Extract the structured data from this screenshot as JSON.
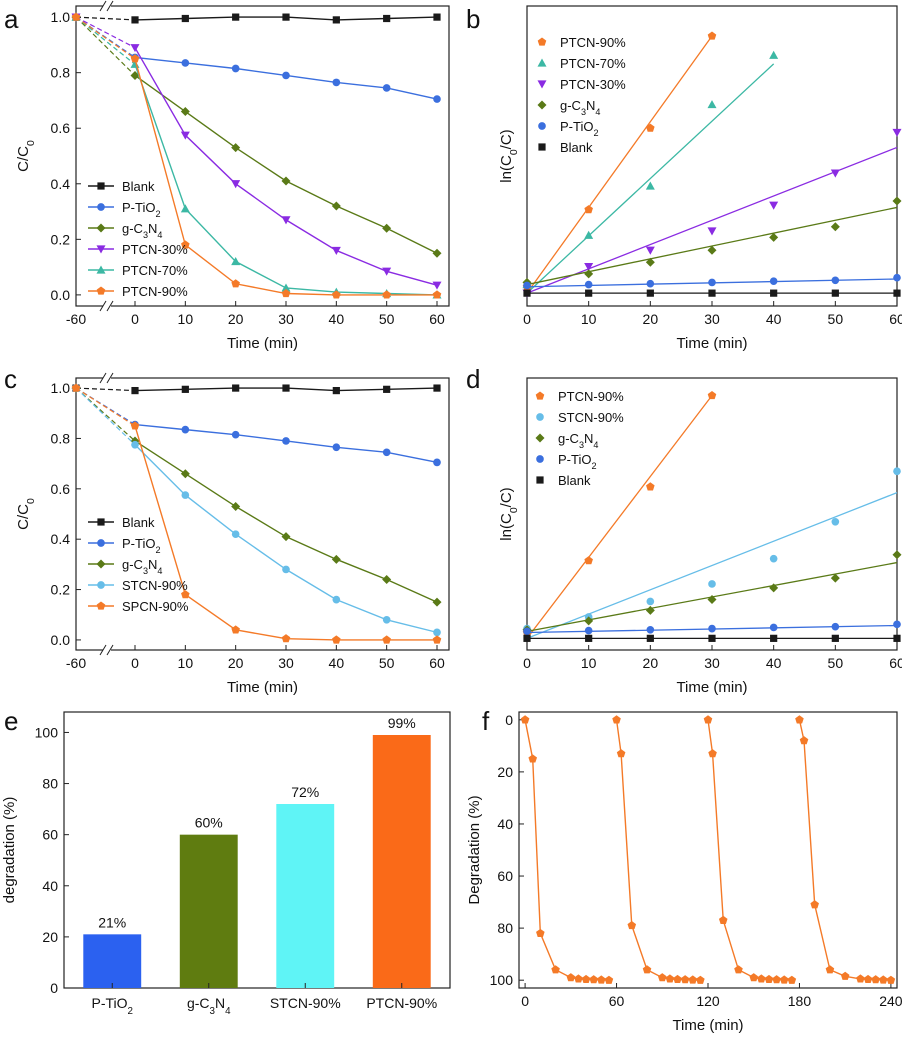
{
  "colors": {
    "blank": "#1a1a1a",
    "ptio2": "#3b6fde",
    "gcn": "#5a7a17",
    "ptcn30": "#8a2be2",
    "ptcn70": "#3cb8a4",
    "ptcn90": "#f47a28",
    "stcn90": "#66bde8",
    "spcn90": "#f47a28",
    "bar_ptio2": "#2b61f0",
    "bar_gcn": "#5f7c10",
    "bar_stcn": "#5ff4f6",
    "bar_ptcn": "#fa6a18"
  },
  "chart_data": [
    {
      "panel": "a",
      "type": "line",
      "xlabel": "Time (min)",
      "ylabel": "C/C0",
      "xticks": [
        "-60",
        "0",
        "10",
        "20",
        "30",
        "40",
        "50",
        "60"
      ],
      "yticks": [
        "0.0",
        "0.2",
        "0.4",
        "0.6",
        "0.8",
        "1.0"
      ],
      "ylim": [
        -0.04,
        1.04
      ],
      "x_break": true,
      "legend_position": "bottom-left",
      "x": [
        -60,
        0,
        10,
        20,
        30,
        40,
        50,
        60
      ],
      "series": [
        {
          "name": "Blank",
          "sub": "",
          "key": "blank",
          "marker": "square",
          "values": [
            1.0,
            0.99,
            0.995,
            1.0,
            1.0,
            0.99,
            0.995,
            1.0
          ]
        },
        {
          "name": "P-TiO",
          "sub": "2",
          "key": "ptio2",
          "marker": "circle",
          "values": [
            1.0,
            0.855,
            0.835,
            0.815,
            0.79,
            0.765,
            0.745,
            0.705
          ]
        },
        {
          "name": "g-C",
          "sub": "3",
          "name2": "N",
          "sub2": "4",
          "key": "gcn",
          "marker": "diamond",
          "values": [
            1.0,
            0.79,
            0.66,
            0.53,
            0.41,
            0.32,
            0.24,
            0.15
          ]
        },
        {
          "name": "PTCN-30%",
          "sub": "",
          "key": "ptcn30",
          "marker": "triangle-down",
          "values": [
            1.0,
            0.89,
            0.575,
            0.4,
            0.27,
            0.16,
            0.085,
            0.035
          ]
        },
        {
          "name": "PTCN-70%",
          "sub": "",
          "key": "ptcn70",
          "marker": "triangle-up",
          "values": [
            1.0,
            0.83,
            0.31,
            0.12,
            0.025,
            0.01,
            0.005,
            0.0
          ]
        },
        {
          "name": "PTCN-90%",
          "sub": "",
          "key": "ptcn90",
          "marker": "pentagon",
          "values": [
            1.0,
            0.85,
            0.18,
            0.04,
            0.005,
            0.0,
            0.0,
            0.0
          ]
        }
      ]
    },
    {
      "panel": "b",
      "type": "scatter",
      "xlabel": "Time (min)",
      "ylabel": "ln(C0/C)",
      "xticks": [
        "0",
        "10",
        "20",
        "30",
        "40",
        "50",
        "60"
      ],
      "xlim": [
        0,
        60
      ],
      "ylim": [
        -0.3,
        6.7
      ],
      "legend_position": "top-left",
      "legend_order": [
        "ptcn90",
        "ptcn70",
        "ptcn30",
        "gcn",
        "ptio2",
        "blank"
      ],
      "fit_lines": true,
      "series": [
        {
          "name": "PTCN-90%",
          "sub": "",
          "key": "ptcn90",
          "marker": "pentagon",
          "x": [
            0,
            10,
            20,
            30
          ],
          "values": [
            0.15,
            1.95,
            3.85,
            6.0
          ],
          "fit": [
            [
              0,
              0.0
            ],
            [
              30,
              6.0
            ]
          ]
        },
        {
          "name": "PTCN-70%",
          "sub": "",
          "key": "ptcn70",
          "marker": "triangle-up",
          "x": [
            0,
            10,
            20,
            30,
            40
          ],
          "values": [
            0.2,
            1.35,
            2.5,
            4.4,
            5.55
          ],
          "fit": [
            [
              0,
              0.0
            ],
            [
              40,
              5.35
            ]
          ]
        },
        {
          "name": "PTCN-30%",
          "sub": "",
          "key": "ptcn30",
          "marker": "triangle-down",
          "x": [
            0,
            10,
            20,
            30,
            40,
            50,
            60
          ],
          "values": [
            0.0,
            0.62,
            1.0,
            1.45,
            2.05,
            2.8,
            3.75
          ],
          "fit": [
            [
              0,
              0.0
            ],
            [
              60,
              3.4
            ]
          ]
        },
        {
          "name": "g-C",
          "sub": "3",
          "name2": "N",
          "sub2": "4",
          "key": "gcn",
          "marker": "diamond",
          "x": [
            0,
            10,
            20,
            30,
            40,
            50,
            60
          ],
          "values": [
            0.25,
            0.45,
            0.72,
            1.0,
            1.3,
            1.55,
            2.15
          ],
          "fit": [
            [
              0,
              0.2
            ],
            [
              60,
              2.0
            ]
          ]
        },
        {
          "name": "P-TiO",
          "sub": "2",
          "key": "ptio2",
          "marker": "circle",
          "x": [
            0,
            10,
            20,
            30,
            40,
            50,
            60
          ],
          "values": [
            0.18,
            0.2,
            0.22,
            0.25,
            0.28,
            0.3,
            0.36
          ],
          "fit": [
            [
              0,
              0.15
            ],
            [
              60,
              0.33
            ]
          ]
        },
        {
          "name": "Blank",
          "sub": "",
          "key": "blank",
          "marker": "square",
          "x": [
            0,
            10,
            20,
            30,
            40,
            50,
            60
          ],
          "values": [
            0.0,
            0.0,
            0.0,
            0.0,
            0.0,
            0.0,
            0.0
          ],
          "fit": [
            [
              0,
              0.0
            ],
            [
              60,
              0.0
            ]
          ]
        }
      ]
    },
    {
      "panel": "c",
      "type": "line",
      "xlabel": "Time (min)",
      "ylabel": "C/C0",
      "xticks": [
        "-60",
        "0",
        "10",
        "20",
        "30",
        "40",
        "50",
        "60"
      ],
      "yticks": [
        "0.0",
        "0.2",
        "0.4",
        "0.6",
        "0.8",
        "1.0"
      ],
      "ylim": [
        -0.04,
        1.04
      ],
      "x_break": true,
      "legend_position": "bottom-left",
      "x": [
        -60,
        0,
        10,
        20,
        30,
        40,
        50,
        60
      ],
      "series": [
        {
          "name": "Blank",
          "sub": "",
          "key": "blank",
          "marker": "square",
          "values": [
            1.0,
            0.99,
            0.995,
            1.0,
            1.0,
            0.99,
            0.995,
            1.0
          ]
        },
        {
          "name": "P-TiO",
          "sub": "2",
          "key": "ptio2",
          "marker": "circle",
          "values": [
            1.0,
            0.855,
            0.835,
            0.815,
            0.79,
            0.765,
            0.745,
            0.705
          ]
        },
        {
          "name": "g-C",
          "sub": "3",
          "name2": "N",
          "sub2": "4",
          "key": "gcn",
          "marker": "diamond",
          "values": [
            1.0,
            0.79,
            0.66,
            0.53,
            0.41,
            0.32,
            0.24,
            0.15
          ]
        },
        {
          "name": "STCN-90%",
          "sub": "",
          "key": "stcn90",
          "marker": "circle",
          "values": [
            1.0,
            0.775,
            0.575,
            0.42,
            0.28,
            0.16,
            0.08,
            0.03
          ]
        },
        {
          "name": "SPCN-90%",
          "sub": "",
          "key": "spcn90",
          "marker": "pentagon",
          "values": [
            1.0,
            0.85,
            0.18,
            0.04,
            0.005,
            0.0,
            0.0,
            0.0
          ]
        }
      ]
    },
    {
      "panel": "d",
      "type": "scatter",
      "xlabel": "Time (min)",
      "ylabel": "ln(C0/C)",
      "xticks": [
        "0",
        "10",
        "20",
        "30",
        "40",
        "50",
        "60"
      ],
      "xlim": [
        0,
        60
      ],
      "ylim": [
        -0.3,
        6.7
      ],
      "legend_position": "top-left",
      "legend_order": [
        "ptcn90",
        "stcn90",
        "gcn",
        "ptio2",
        "blank"
      ],
      "fit_lines": true,
      "series": [
        {
          "name": "PTCN-90%",
          "sub": "",
          "key": "ptcn90",
          "marker": "pentagon",
          "x": [
            0,
            10,
            20,
            30
          ],
          "values": [
            0.15,
            2.0,
            3.9,
            6.25
          ],
          "fit": [
            [
              0,
              0.0
            ],
            [
              30,
              6.25
            ]
          ]
        },
        {
          "name": "STCN-90%",
          "sub": "",
          "key": "stcn90",
          "marker": "circle",
          "x": [
            0,
            10,
            20,
            30,
            40,
            50,
            60
          ],
          "values": [
            0.25,
            0.55,
            0.95,
            1.4,
            2.05,
            3.0,
            4.3
          ],
          "fit": [
            [
              0,
              0.0
            ],
            [
              60,
              3.75
            ]
          ]
        },
        {
          "name": "g-C",
          "sub": "3",
          "name2": "N",
          "sub2": "4",
          "key": "gcn",
          "marker": "diamond",
          "x": [
            0,
            10,
            20,
            30,
            40,
            50,
            60
          ],
          "values": [
            0.22,
            0.45,
            0.72,
            1.0,
            1.3,
            1.55,
            2.15
          ],
          "fit": [
            [
              0,
              0.18
            ],
            [
              60,
              1.95
            ]
          ]
        },
        {
          "name": "P-TiO",
          "sub": "2",
          "key": "ptio2",
          "marker": "circle",
          "x": [
            0,
            10,
            20,
            30,
            40,
            50,
            60
          ],
          "values": [
            0.18,
            0.2,
            0.22,
            0.25,
            0.28,
            0.3,
            0.36
          ],
          "fit": [
            [
              0,
              0.15
            ],
            [
              60,
              0.33
            ]
          ]
        },
        {
          "name": "Blank",
          "sub": "",
          "key": "blank",
          "marker": "square",
          "x": [
            0,
            10,
            20,
            30,
            40,
            50,
            60
          ],
          "values": [
            0.0,
            0.0,
            0.0,
            0.0,
            0.0,
            0.0,
            0.0
          ],
          "fit": [
            [
              0,
              0.0
            ],
            [
              60,
              0.0
            ]
          ]
        }
      ]
    },
    {
      "panel": "e",
      "type": "bar",
      "ylabel": "degradation (%)",
      "yticks": [
        "0",
        "20",
        "40",
        "60",
        "80",
        "100"
      ],
      "ylim": [
        0,
        108
      ],
      "categories": [
        {
          "name": "P-TiO",
          "sub": "2"
        },
        {
          "name": "g-C",
          "sub": "3",
          "name2": "N",
          "sub2": "4"
        },
        {
          "name": "STCN-90%",
          "sub": ""
        },
        {
          "name": "PTCN-90%",
          "sub": ""
        }
      ],
      "values": [
        21,
        60,
        72,
        99
      ],
      "value_labels": [
        "21%",
        "60%",
        "72%",
        "99%"
      ],
      "bar_keys": [
        "bar_ptio2",
        "bar_gcn",
        "bar_stcn",
        "bar_ptcn"
      ]
    },
    {
      "panel": "f",
      "type": "line",
      "xlabel": "Time (min)",
      "ylabel": "Degradation (%)",
      "xticks": [
        "0",
        "60",
        "120",
        "180",
        "240"
      ],
      "yticks": [
        "0",
        "20",
        "40",
        "60",
        "80",
        "100"
      ],
      "xlim": [
        -4,
        244
      ],
      "ylim": [
        -3,
        103
      ],
      "y_inverted": true,
      "marker": "pentagon",
      "color_key": "ptcn90",
      "cycles": [
        {
          "x": [
            0,
            5,
            10,
            20,
            30,
            35,
            40,
            45,
            50,
            55
          ],
          "values": [
            0,
            15,
            82,
            96,
            99,
            99.5,
            99.7,
            99.8,
            99.9,
            100
          ]
        },
        {
          "x": [
            60,
            63,
            70,
            80,
            90,
            95,
            100,
            105,
            110,
            115
          ],
          "values": [
            0,
            13,
            79,
            96,
            99,
            99.5,
            99.7,
            99.8,
            99.9,
            100
          ]
        },
        {
          "x": [
            120,
            123,
            130,
            140,
            150,
            155,
            160,
            165,
            170,
            175
          ],
          "values": [
            0,
            13,
            77,
            96,
            99,
            99.5,
            99.7,
            99.8,
            99.9,
            100
          ]
        },
        {
          "x": [
            180,
            183,
            190,
            200,
            210,
            220,
            225,
            230,
            235,
            240
          ],
          "values": [
            0,
            8,
            71,
            96,
            98.5,
            99.5,
            99.7,
            99.8,
            99.9,
            100
          ]
        }
      ]
    }
  ],
  "panels": [
    {
      "letter": "a"
    },
    {
      "letter": "b"
    },
    {
      "letter": "c"
    },
    {
      "letter": "d"
    },
    {
      "letter": "e"
    },
    {
      "letter": "f"
    }
  ]
}
